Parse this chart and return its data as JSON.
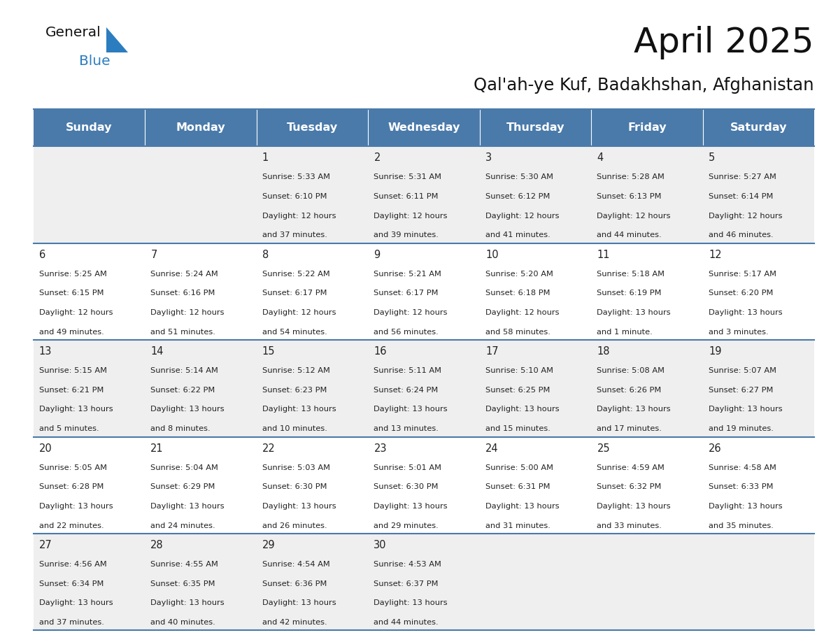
{
  "title": "April 2025",
  "subtitle": "Qal'ah-ye Kuf, Badakhshan, Afghanistan",
  "header_color": "#4a7aaa",
  "header_text_color": "#ffffff",
  "row_bg_odd": "#efefef",
  "row_bg_even": "#ffffff",
  "border_color": "#4a7aaa",
  "text_color": "#222222",
  "day_names": [
    "Sunday",
    "Monday",
    "Tuesday",
    "Wednesday",
    "Thursday",
    "Friday",
    "Saturday"
  ],
  "days": [
    {
      "day": 1,
      "col": 2,
      "row": 0,
      "sunrise": "5:33 AM",
      "sunset": "6:10 PM",
      "daylight_h": "12 hours",
      "daylight_m": "and 37 minutes."
    },
    {
      "day": 2,
      "col": 3,
      "row": 0,
      "sunrise": "5:31 AM",
      "sunset": "6:11 PM",
      "daylight_h": "12 hours",
      "daylight_m": "and 39 minutes."
    },
    {
      "day": 3,
      "col": 4,
      "row": 0,
      "sunrise": "5:30 AM",
      "sunset": "6:12 PM",
      "daylight_h": "12 hours",
      "daylight_m": "and 41 minutes."
    },
    {
      "day": 4,
      "col": 5,
      "row": 0,
      "sunrise": "5:28 AM",
      "sunset": "6:13 PM",
      "daylight_h": "12 hours",
      "daylight_m": "and 44 minutes."
    },
    {
      "day": 5,
      "col": 6,
      "row": 0,
      "sunrise": "5:27 AM",
      "sunset": "6:14 PM",
      "daylight_h": "12 hours",
      "daylight_m": "and 46 minutes."
    },
    {
      "day": 6,
      "col": 0,
      "row": 1,
      "sunrise": "5:25 AM",
      "sunset": "6:15 PM",
      "daylight_h": "12 hours",
      "daylight_m": "and 49 minutes."
    },
    {
      "day": 7,
      "col": 1,
      "row": 1,
      "sunrise": "5:24 AM",
      "sunset": "6:16 PM",
      "daylight_h": "12 hours",
      "daylight_m": "and 51 minutes."
    },
    {
      "day": 8,
      "col": 2,
      "row": 1,
      "sunrise": "5:22 AM",
      "sunset": "6:17 PM",
      "daylight_h": "12 hours",
      "daylight_m": "and 54 minutes."
    },
    {
      "day": 9,
      "col": 3,
      "row": 1,
      "sunrise": "5:21 AM",
      "sunset": "6:17 PM",
      "daylight_h": "12 hours",
      "daylight_m": "and 56 minutes."
    },
    {
      "day": 10,
      "col": 4,
      "row": 1,
      "sunrise": "5:20 AM",
      "sunset": "6:18 PM",
      "daylight_h": "12 hours",
      "daylight_m": "and 58 minutes."
    },
    {
      "day": 11,
      "col": 5,
      "row": 1,
      "sunrise": "5:18 AM",
      "sunset": "6:19 PM",
      "daylight_h": "13 hours",
      "daylight_m": "and 1 minute."
    },
    {
      "day": 12,
      "col": 6,
      "row": 1,
      "sunrise": "5:17 AM",
      "sunset": "6:20 PM",
      "daylight_h": "13 hours",
      "daylight_m": "and 3 minutes."
    },
    {
      "day": 13,
      "col": 0,
      "row": 2,
      "sunrise": "5:15 AM",
      "sunset": "6:21 PM",
      "daylight_h": "13 hours",
      "daylight_m": "and 5 minutes."
    },
    {
      "day": 14,
      "col": 1,
      "row": 2,
      "sunrise": "5:14 AM",
      "sunset": "6:22 PM",
      "daylight_h": "13 hours",
      "daylight_m": "and 8 minutes."
    },
    {
      "day": 15,
      "col": 2,
      "row": 2,
      "sunrise": "5:12 AM",
      "sunset": "6:23 PM",
      "daylight_h": "13 hours",
      "daylight_m": "and 10 minutes."
    },
    {
      "day": 16,
      "col": 3,
      "row": 2,
      "sunrise": "5:11 AM",
      "sunset": "6:24 PM",
      "daylight_h": "13 hours",
      "daylight_m": "and 13 minutes."
    },
    {
      "day": 17,
      "col": 4,
      "row": 2,
      "sunrise": "5:10 AM",
      "sunset": "6:25 PM",
      "daylight_h": "13 hours",
      "daylight_m": "and 15 minutes."
    },
    {
      "day": 18,
      "col": 5,
      "row": 2,
      "sunrise": "5:08 AM",
      "sunset": "6:26 PM",
      "daylight_h": "13 hours",
      "daylight_m": "and 17 minutes."
    },
    {
      "day": 19,
      "col": 6,
      "row": 2,
      "sunrise": "5:07 AM",
      "sunset": "6:27 PM",
      "daylight_h": "13 hours",
      "daylight_m": "and 19 minutes."
    },
    {
      "day": 20,
      "col": 0,
      "row": 3,
      "sunrise": "5:05 AM",
      "sunset": "6:28 PM",
      "daylight_h": "13 hours",
      "daylight_m": "and 22 minutes."
    },
    {
      "day": 21,
      "col": 1,
      "row": 3,
      "sunrise": "5:04 AM",
      "sunset": "6:29 PM",
      "daylight_h": "13 hours",
      "daylight_m": "and 24 minutes."
    },
    {
      "day": 22,
      "col": 2,
      "row": 3,
      "sunrise": "5:03 AM",
      "sunset": "6:30 PM",
      "daylight_h": "13 hours",
      "daylight_m": "and 26 minutes."
    },
    {
      "day": 23,
      "col": 3,
      "row": 3,
      "sunrise": "5:01 AM",
      "sunset": "6:30 PM",
      "daylight_h": "13 hours",
      "daylight_m": "and 29 minutes."
    },
    {
      "day": 24,
      "col": 4,
      "row": 3,
      "sunrise": "5:00 AM",
      "sunset": "6:31 PM",
      "daylight_h": "13 hours",
      "daylight_m": "and 31 minutes."
    },
    {
      "day": 25,
      "col": 5,
      "row": 3,
      "sunrise": "4:59 AM",
      "sunset": "6:32 PM",
      "daylight_h": "13 hours",
      "daylight_m": "and 33 minutes."
    },
    {
      "day": 26,
      "col": 6,
      "row": 3,
      "sunrise": "4:58 AM",
      "sunset": "6:33 PM",
      "daylight_h": "13 hours",
      "daylight_m": "and 35 minutes."
    },
    {
      "day": 27,
      "col": 0,
      "row": 4,
      "sunrise": "4:56 AM",
      "sunset": "6:34 PM",
      "daylight_h": "13 hours",
      "daylight_m": "and 37 minutes."
    },
    {
      "day": 28,
      "col": 1,
      "row": 4,
      "sunrise": "4:55 AM",
      "sunset": "6:35 PM",
      "daylight_h": "13 hours",
      "daylight_m": "and 40 minutes."
    },
    {
      "day": 29,
      "col": 2,
      "row": 4,
      "sunrise": "4:54 AM",
      "sunset": "6:36 PM",
      "daylight_h": "13 hours",
      "daylight_m": "and 42 minutes."
    },
    {
      "day": 30,
      "col": 3,
      "row": 4,
      "sunrise": "4:53 AM",
      "sunset": "6:37 PM",
      "daylight_h": "13 hours",
      "daylight_m": "and 44 minutes."
    }
  ],
  "logo_text_color": "#1a1a1a",
  "logo_blue_color": "#2b7dc0"
}
